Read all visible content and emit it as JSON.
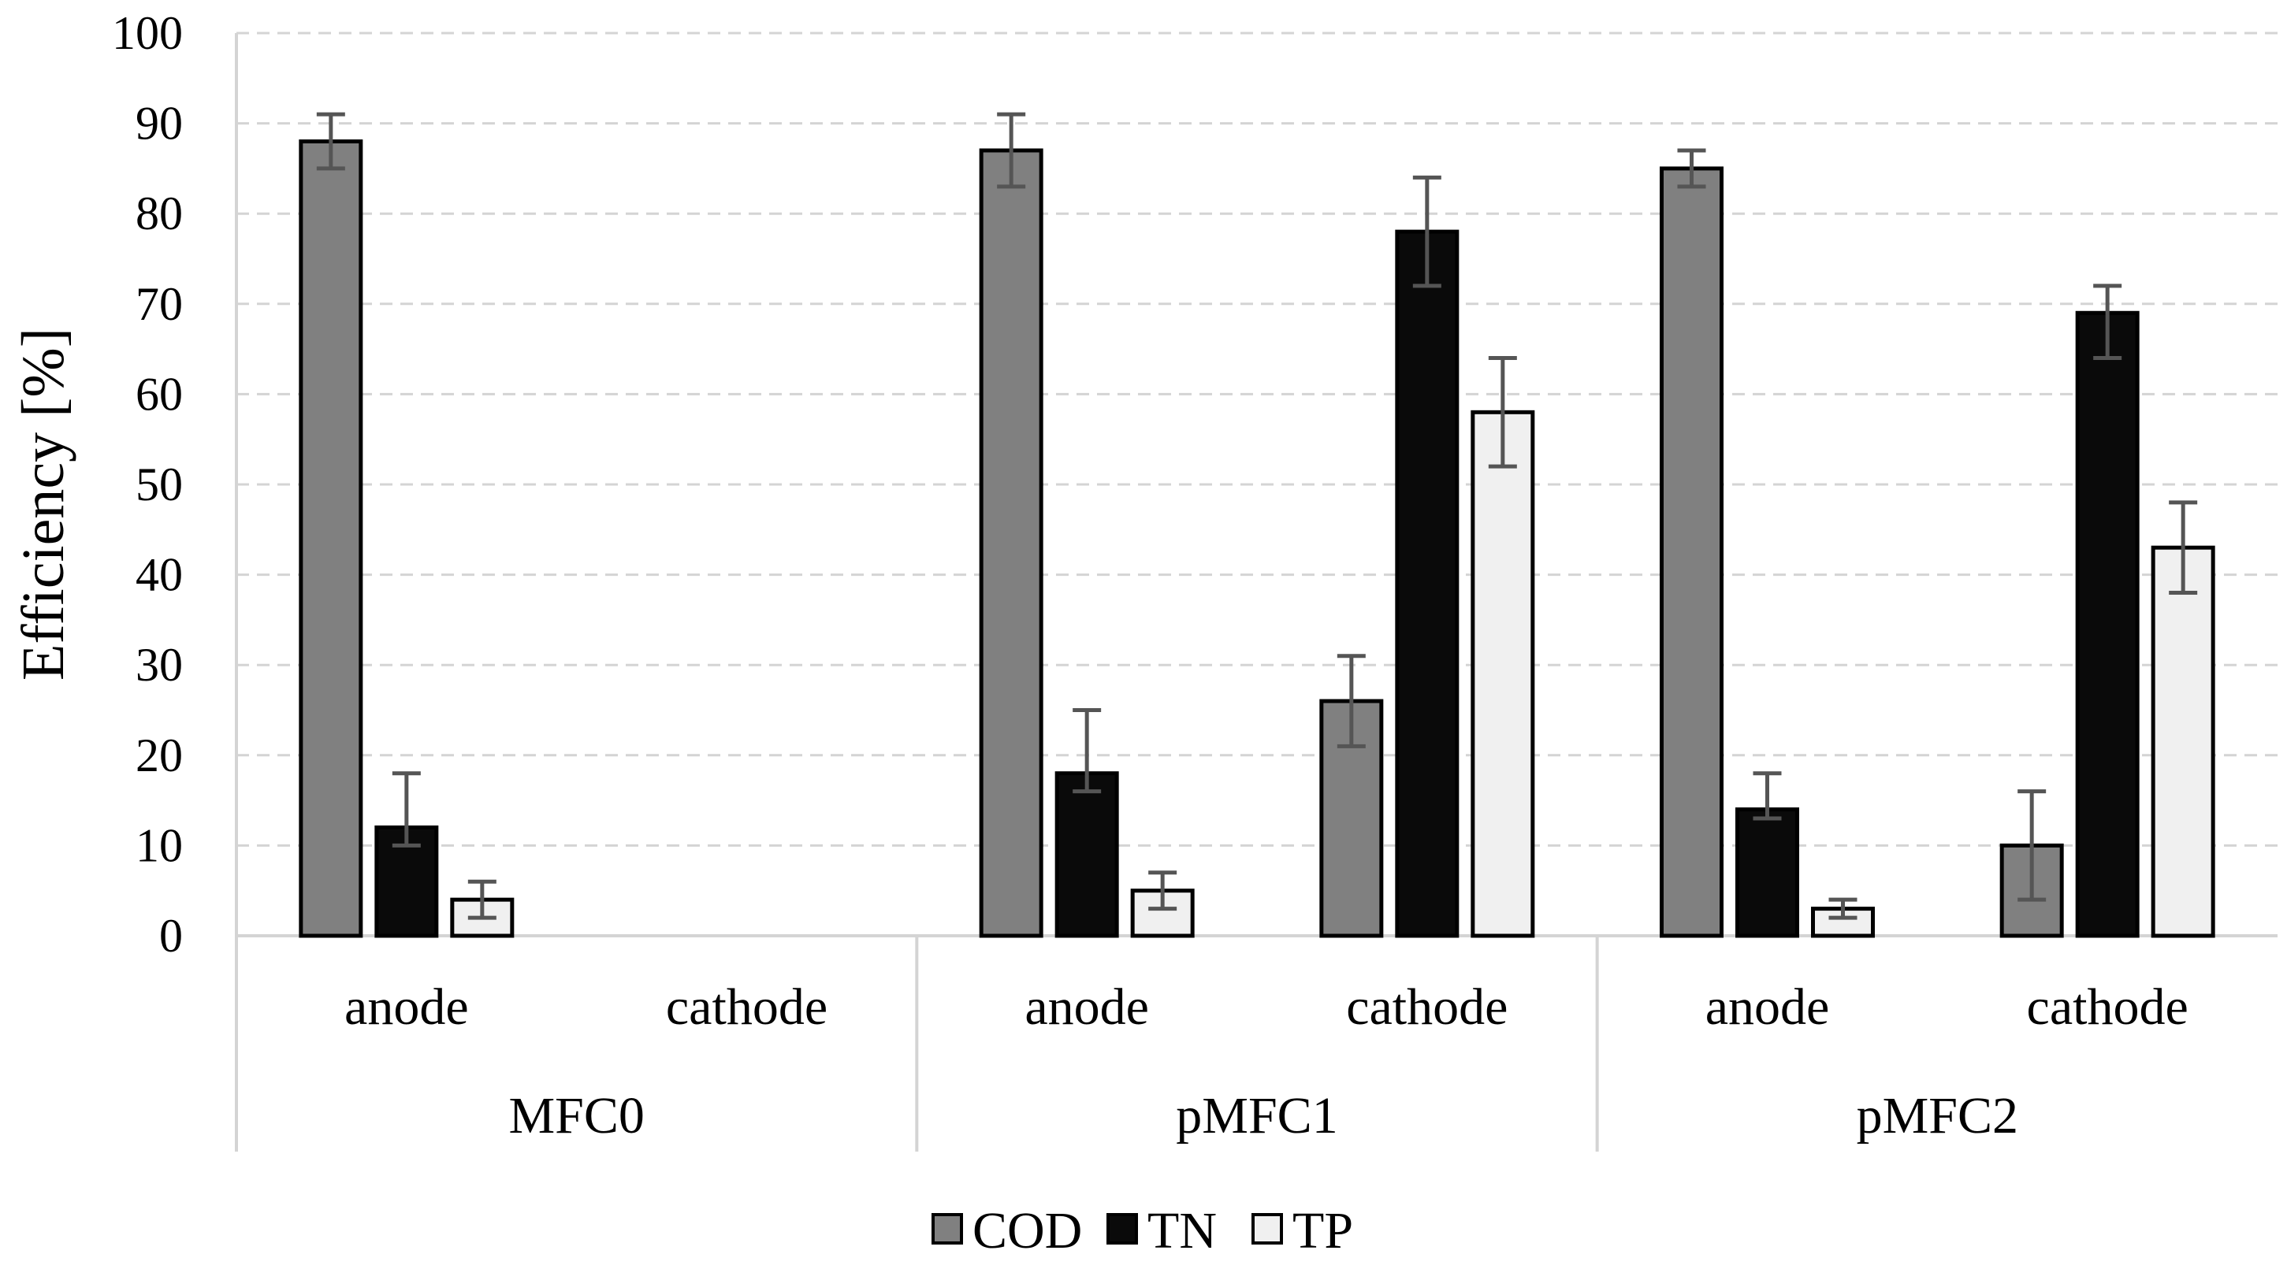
{
  "chart_data": {
    "type": "bar",
    "ylabel": "Efficiency [%]",
    "ylim": [
      0,
      100
    ],
    "yticks": [
      "0",
      "10",
      "20",
      "30",
      "40",
      "50",
      "60",
      "70",
      "80",
      "90",
      "100"
    ],
    "grid": "horizontal dashed",
    "groups": [
      {
        "label": "MFC0",
        "categories": [
          "anode",
          "cathode"
        ]
      },
      {
        "label": "pMFC1",
        "categories": [
          "anode",
          "cathode"
        ]
      },
      {
        "label": "pMFC2",
        "categories": [
          "anode",
          "cathode"
        ]
      }
    ],
    "series": [
      {
        "name": "COD",
        "color": "#808080",
        "values": [
          88,
          null,
          87,
          26,
          85,
          10
        ],
        "error_low": [
          85,
          null,
          83,
          21,
          83,
          4
        ],
        "error_high": [
          91,
          null,
          91,
          31,
          87,
          16
        ]
      },
      {
        "name": "TN",
        "color": "#0a0a0a",
        "values": [
          12,
          null,
          18,
          78,
          14,
          69
        ],
        "error_low": [
          10,
          null,
          16,
          72,
          13,
          64
        ],
        "error_high": [
          18,
          null,
          25,
          84,
          18,
          72
        ]
      },
      {
        "name": "TP",
        "color": "#f0f0f0",
        "values": [
          4,
          null,
          5,
          58,
          3,
          43
        ],
        "error_low": [
          2,
          null,
          3,
          52,
          2,
          38
        ],
        "error_high": [
          6,
          null,
          7,
          64,
          4,
          48
        ]
      }
    ],
    "legend_position": "bottom-center"
  },
  "legend": {
    "items": [
      {
        "label": "COD",
        "color": "#808080"
      },
      {
        "label": "TN",
        "color": "#0a0a0a"
      },
      {
        "label": "TP",
        "color": "#f0f0f0"
      }
    ]
  }
}
